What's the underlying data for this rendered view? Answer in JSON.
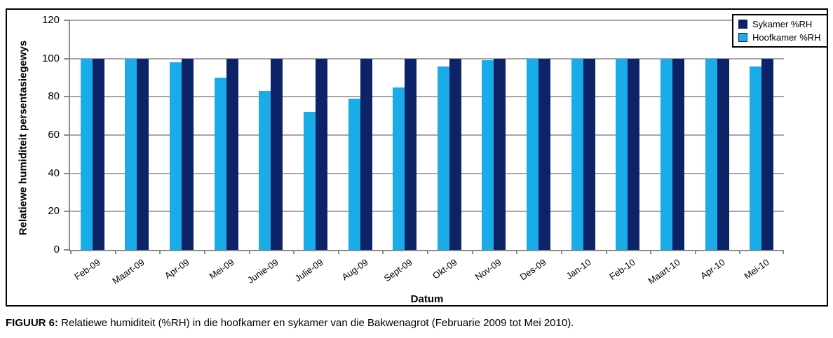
{
  "figure": {
    "caption_label": "FIGUUR 6:",
    "caption_text": " Relatiewe humiditeit (%RH) in die hoofkamer en sykamer van die Bakwenagrot (Februarie 2009 tot Mei 2010)."
  },
  "chart_data": {
    "type": "bar",
    "title": "",
    "xlabel": "Datum",
    "ylabel": "Relatiewe humiditeit persentasiegewys",
    "ylim": [
      0,
      120
    ],
    "yticks": [
      0,
      20,
      40,
      60,
      80,
      100,
      120
    ],
    "grid": true,
    "legend_position": "top-right",
    "categories": [
      "Feb-09",
      "Maart-09",
      "Apr-09",
      "Mei-09",
      "Junie-09",
      "Julie-09",
      "Aug-09",
      "Sept-09",
      "Okt-09",
      "Nov-09",
      "Des-09",
      "Jan-10",
      "Feb-10",
      "Maart-10",
      "Apr-10",
      "Mei-10"
    ],
    "series": [
      {
        "name": "Sykamer %RH",
        "color": "#0c2467",
        "values": [
          100,
          100,
          100,
          100,
          100,
          100,
          100,
          100,
          100,
          100,
          100,
          100,
          100,
          100,
          100,
          100
        ]
      },
      {
        "name": "Hoofkamer %RH",
        "color": "#1aace8",
        "values": [
          100,
          100,
          98,
          90,
          83,
          72,
          79,
          85,
          96,
          99,
          100,
          100,
          100,
          100,
          100,
          96
        ]
      }
    ],
    "bars_left_to_right": [
      "Hoofkamer %RH",
      "Sykamer %RH"
    ],
    "colors": {
      "gridline": "#a6a6a6",
      "axis": "#8a8a8a",
      "frame_border": "#000000"
    }
  }
}
